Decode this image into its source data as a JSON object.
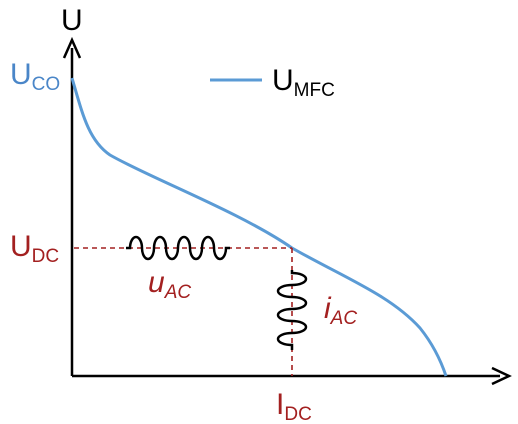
{
  "axes": {
    "y_label": "U",
    "x_label": {
      "main": "I",
      "sub": "DC"
    }
  },
  "labels": {
    "u_co": {
      "main": "U",
      "sub": "CO"
    },
    "u_dc": {
      "main": "U",
      "sub": "DC"
    },
    "u_ac": {
      "main": "u",
      "sub": "AC"
    },
    "i_ac": {
      "main": "i",
      "sub": "AC"
    }
  },
  "legend": {
    "entry": {
      "main": "U",
      "sub": "MFC"
    }
  },
  "colors": {
    "curve": "#5b9bd5",
    "operating_point": "#a32020",
    "axes": "#000000",
    "u_co_label": "#4a86c8"
  }
}
